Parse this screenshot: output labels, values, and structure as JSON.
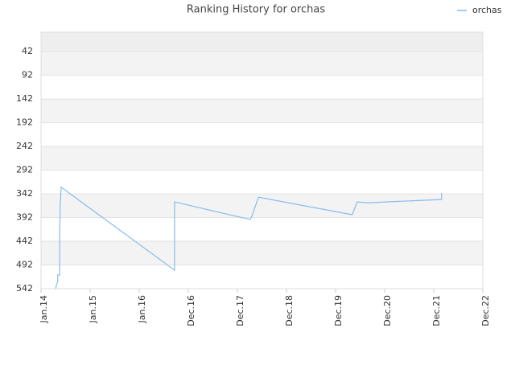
{
  "chart_data": {
    "type": "line",
    "title": "Ranking History for orchas",
    "x": [
      0.3,
      0.31,
      0.34,
      0.34,
      0.38,
      0.38,
      0.39,
      0.41,
      2.72,
      2.72,
      4.26,
      4.3,
      4.43,
      6.34,
      6.44,
      6.67,
      7.03,
      8.15,
      8.16,
      8.16
    ],
    "series": [
      {
        "name": "orchas",
        "color": "#88bbee",
        "values": [
          542,
          535,
          527,
          513,
          513,
          433,
          366,
          328,
          503,
          359,
          396,
          388,
          349,
          386,
          359,
          361,
          359,
          354,
          354,
          340
        ]
      }
    ],
    "xlim": [
      0,
      9
    ],
    "xticks": [
      {
        "value": 0,
        "label": "Jan.14"
      },
      {
        "value": 1,
        "label": "Jan.15"
      },
      {
        "value": 2,
        "label": "Jan.16"
      },
      {
        "value": 3,
        "label": "Dec.16"
      },
      {
        "value": 4,
        "label": "Dec.17"
      },
      {
        "value": 5,
        "label": "Dec.18"
      },
      {
        "value": 6,
        "label": "Dec.19"
      },
      {
        "value": 7,
        "label": "Dec.20"
      },
      {
        "value": 8,
        "label": "Dec.21"
      },
      {
        "value": 9,
        "label": "Dec.22"
      }
    ],
    "ylim": [
      542,
      1
    ],
    "yticks": [
      42,
      92,
      142,
      192,
      242,
      292,
      342,
      392,
      442,
      492,
      542
    ],
    "grid": true,
    "legend": "top-right"
  }
}
